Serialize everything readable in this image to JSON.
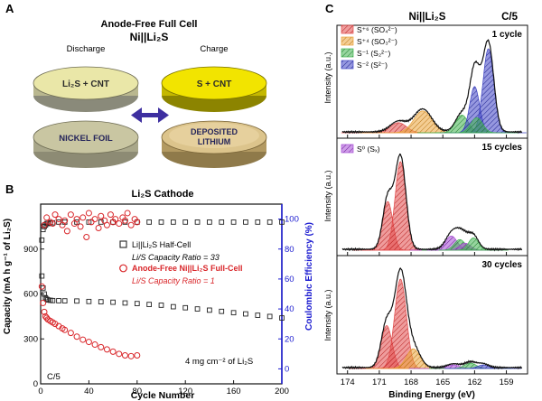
{
  "panel_labels": {
    "a": "A",
    "b": "B",
    "c": "C"
  },
  "schematic": {
    "title_line1": "Anode-Free Full Cell",
    "title_line2": "Ni||Li₂S",
    "discharge_label": "Discharge",
    "charge_label": "Charge",
    "disc_top_left": "Li₂S + CNT",
    "disc_top_right": "S + CNT",
    "disc_bottom_left": "NICKEL FOIL",
    "disc_bottom_right_1": "DEPOSITED",
    "disc_bottom_right_2": "LITHIUM",
    "colors": {
      "li2s": "#eae7a8",
      "sulfur": "#f2e400",
      "nickel": "#c9c6a2",
      "lithium": "#dcc48c",
      "arrow": "#3e2fa0"
    }
  },
  "chart_data": [
    {
      "type": "scatter",
      "title": "Li₂S Cathode",
      "xlabel": "Cycle Number",
      "ylabel_left": "Capacity (mA h g⁻¹ of Li₂S)",
      "ylabel_right": "Coulombic Efficiency (%)",
      "xlim": [
        0,
        200
      ],
      "ylim_left": [
        0,
        1200
      ],
      "ylim_right": [
        -10,
        110
      ],
      "xticks": [
        0,
        40,
        80,
        120,
        160,
        200
      ],
      "yticks_left": [
        0,
        300,
        600,
        900
      ],
      "yticks_right": [
        0,
        20,
        40,
        60,
        80,
        100
      ],
      "annotations": {
        "rate": "C/5",
        "loading": "4 mg cm⁻² of Li₂S"
      },
      "legend": {
        "half_cell": "Li||Li₂S Half-Cell",
        "half_ratio": "Li/S Capacity Ratio = 33",
        "full_cell": "Anode-Free Ni||Li₂S Full-Cell",
        "full_ratio": "Li/S Capacity Ratio = 1"
      },
      "series": [
        {
          "name": "Li||Li₂S Half-Cell",
          "color": "#222222",
          "capacity": {
            "x": [
              1,
              2,
              3,
              4,
              5,
              6,
              8,
              10,
              15,
              20,
              30,
              40,
              50,
              60,
              70,
              80,
              90,
              100,
              110,
              120,
              130,
              140,
              150,
              160,
              170,
              180,
              190,
              200
            ],
            "y": [
              720,
              640,
              600,
              575,
              565,
              560,
              558,
              556,
              555,
              554,
              553,
              550,
              548,
              545,
              540,
              536,
              530,
              525,
              515,
              508,
              500,
              492,
              484,
              475,
              467,
              458,
              450,
              440
            ]
          },
          "efficiency": {
            "x": [
              1,
              2,
              3,
              4,
              5,
              6,
              8,
              10,
              15,
              20,
              30,
              40,
              50,
              60,
              70,
              80,
              90,
              100,
              110,
              120,
              130,
              140,
              150,
              160,
              170,
              180,
              190,
              200
            ],
            "y": [
              86,
              93,
              95,
              96,
              97,
              97,
              97.5,
              97.5,
              98,
              98,
              98,
              98,
              98,
              98,
              98,
              98,
              98,
              98,
              98,
              98,
              98,
              98,
              98,
              98,
              98,
              98,
              98,
              98
            ]
          }
        },
        {
          "name": "Anode-Free Ni||Li₂S Full-Cell",
          "color": "#d9262a",
          "capacity": {
            "x": [
              1,
              2,
              3,
              4,
              5,
              6,
              8,
              10,
              12,
              15,
              18,
              20,
              25,
              30,
              35,
              40,
              45,
              50,
              55,
              60,
              65,
              70,
              75,
              80
            ],
            "y": [
              650,
              540,
              480,
              450,
              440,
              430,
              420,
              410,
              400,
              385,
              370,
              360,
              340,
              315,
              295,
              280,
              262,
              245,
              230,
              215,
              200,
              190,
              185,
              190
            ]
          },
          "efficiency": {
            "x": [
              3,
              5,
              8,
              10,
              12,
              15,
              18,
              20,
              22,
              25,
              28,
              30,
              33,
              35,
              38,
              40,
              42,
              45,
              48,
              50,
              53,
              55,
              58,
              60,
              62,
              65,
              68,
              70,
              72,
              75,
              78,
              80
            ],
            "y": [
              96,
              101,
              98,
              97,
              103,
              100,
              96,
              99,
              92,
              103,
              97,
              100,
              95,
              101,
              88,
              104,
              98,
              100,
              94,
              102,
              99,
              96,
              103,
              98,
              100,
              97,
              101,
              99,
              104,
              96,
              100,
              98
            ]
          }
        }
      ]
    },
    {
      "type": "area",
      "title": "Ni||Li₂S",
      "rate": "C/5",
      "xlabel": "Binding Energy (eV)",
      "ylabel": "Intensity (a.u.)",
      "xlim": [
        175,
        157
      ],
      "xticks": [
        174,
        171,
        168,
        165,
        162,
        159
      ],
      "legend_top": [
        "S⁺⁶ (SO₄²⁻)",
        "S⁺⁴ (SO₃²⁻)",
        "S⁻¹ (S₂²⁻)",
        "S⁻² (S²⁻)"
      ],
      "legend_mid": [
        "S⁰ (Sₓ)"
      ],
      "component_colors": {
        "S6": "#e24b4b",
        "S4": "#eaa33a",
        "S1": "#3fb34f",
        "S2": "#3f44c4",
        "S0": "#a64bd4"
      },
      "panels": [
        {
          "label": "1 cycle",
          "peaks": [
            {
              "comp": "S6",
              "center": 169.2,
              "fwhm": 1.8,
              "amp": 0.12
            },
            {
              "comp": "S4",
              "center": 166.9,
              "fwhm": 2.0,
              "amp": 0.26
            },
            {
              "comp": "S1",
              "center": 163.2,
              "fwhm": 1.4,
              "amp": 0.21
            },
            {
              "comp": "S2",
              "center": 162.0,
              "fwhm": 1.1,
              "amp": 0.55
            },
            {
              "comp": "S2",
              "center": 160.7,
              "fwhm": 1.2,
              "amp": 1.0
            },
            {
              "comp": "S1",
              "center": 161.8,
              "fwhm": 1.3,
              "amp": 0.18
            }
          ]
        },
        {
          "label": "15 cycles",
          "peaks": [
            {
              "comp": "S6",
              "center": 170.2,
              "fwhm": 1.1,
              "amp": 0.55
            },
            {
              "comp": "S6",
              "center": 169.0,
              "fwhm": 1.2,
              "amp": 1.0
            },
            {
              "comp": "S0",
              "center": 164.2,
              "fwhm": 1.3,
              "amp": 0.16
            },
            {
              "comp": "S1",
              "center": 163.4,
              "fwhm": 1.2,
              "amp": 0.12
            },
            {
              "comp": "S0",
              "center": 162.9,
              "fwhm": 1.2,
              "amp": 0.08
            },
            {
              "comp": "S1",
              "center": 162.1,
              "fwhm": 1.1,
              "amp": 0.14
            }
          ]
        },
        {
          "label": "30 cycles",
          "peaks": [
            {
              "comp": "S6",
              "center": 170.3,
              "fwhm": 1.2,
              "amp": 0.48
            },
            {
              "comp": "S6",
              "center": 169.0,
              "fwhm": 1.3,
              "amp": 1.0
            },
            {
              "comp": "S4",
              "center": 167.8,
              "fwhm": 1.5,
              "amp": 0.22
            },
            {
              "comp": "S0",
              "center": 164.0,
              "fwhm": 1.4,
              "amp": 0.04
            },
            {
              "comp": "S1",
              "center": 162.4,
              "fwhm": 1.3,
              "amp": 0.06
            },
            {
              "comp": "S2",
              "center": 161.2,
              "fwhm": 1.2,
              "amp": 0.04
            }
          ]
        }
      ]
    }
  ]
}
